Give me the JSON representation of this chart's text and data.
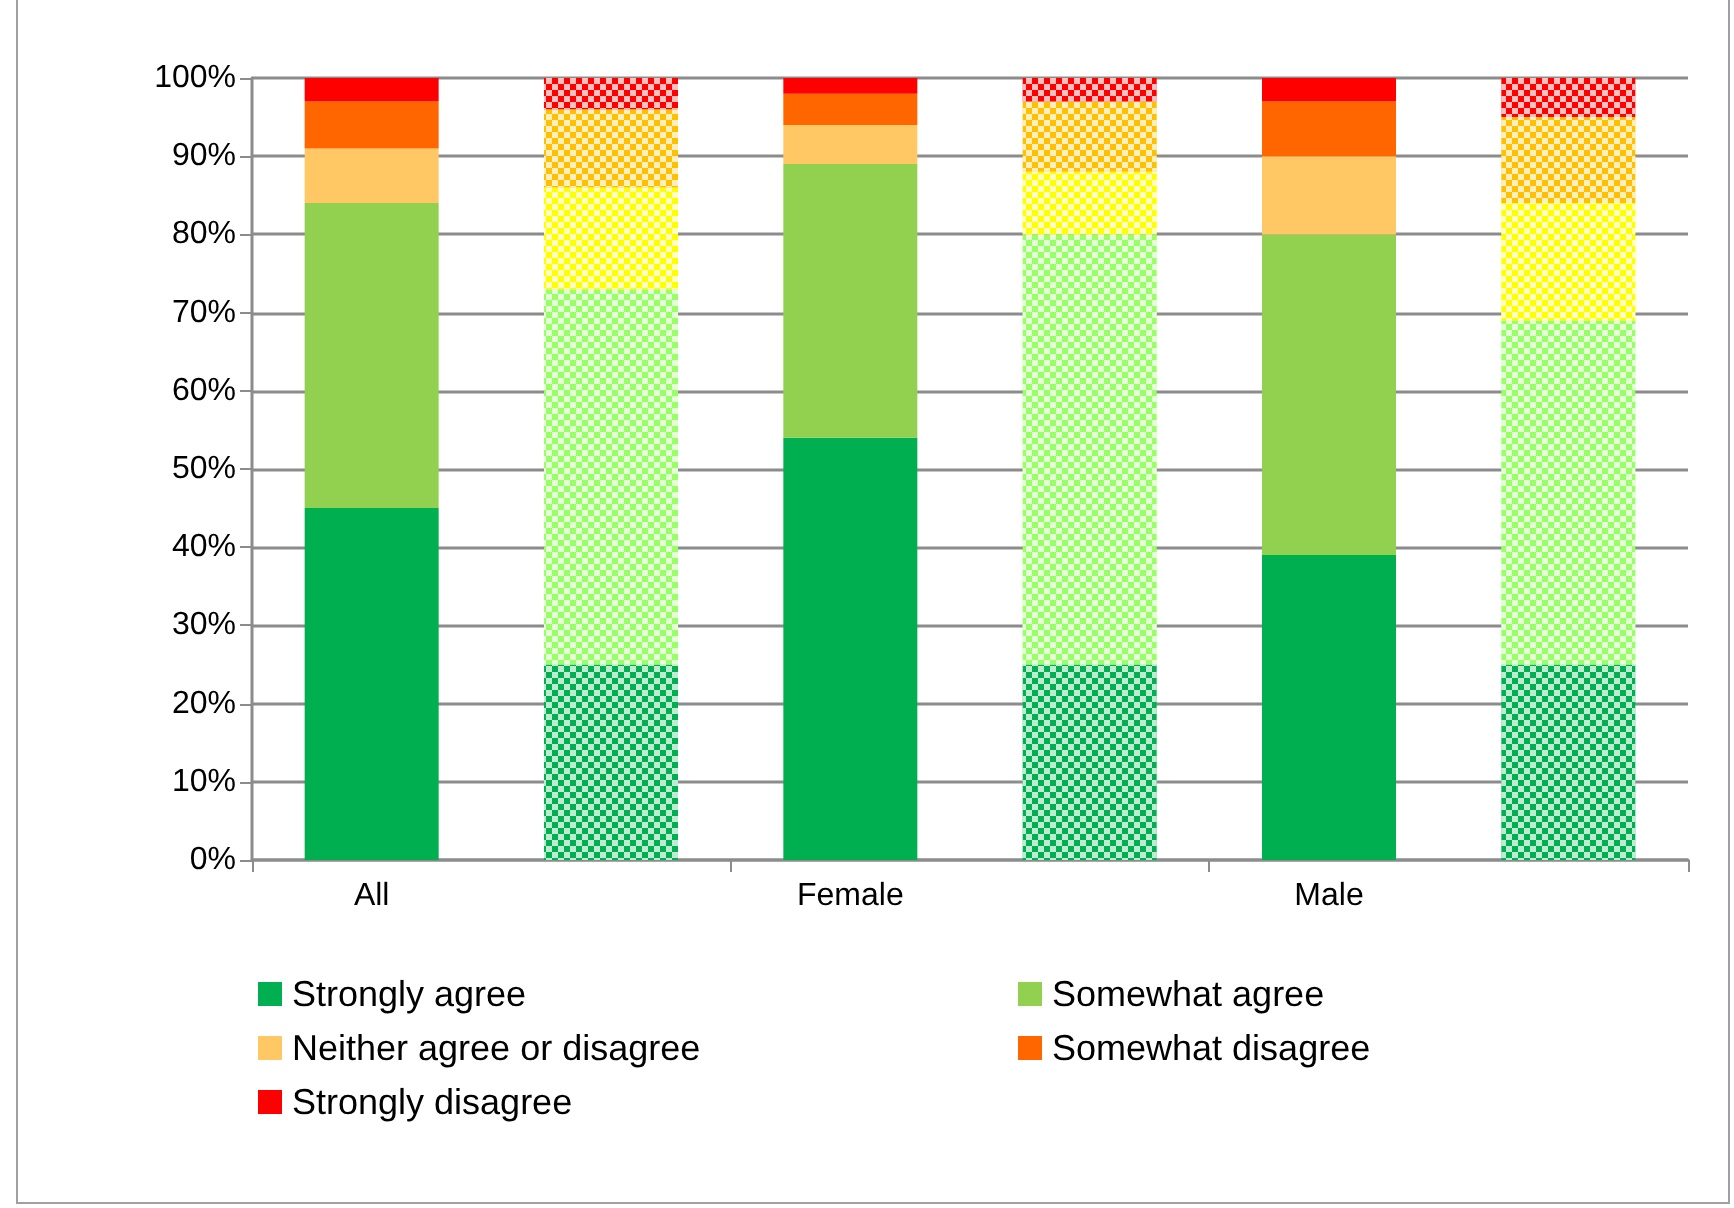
{
  "chart_data": {
    "type": "bar",
    "stacked": true,
    "categories": [
      "All",
      null,
      "Female",
      null,
      "Male",
      null
    ],
    "series": [
      {
        "name": "Strongly agree",
        "color": "#00b050",
        "values": [
          45,
          null,
          54,
          null,
          39,
          null
        ]
      },
      {
        "name": "Somewhat agree",
        "color": "#92d050",
        "values": [
          39,
          null,
          35,
          null,
          41,
          null
        ]
      },
      {
        "name": "Neither agree or disagree",
        "color": "#ffc864",
        "values": [
          7,
          null,
          5,
          null,
          10,
          null
        ]
      },
      {
        "name": "Somewhat disagree",
        "color": "#ff6600",
        "values": [
          6,
          null,
          4,
          null,
          7,
          null
        ]
      },
      {
        "name": "Strongly disagree",
        "color": "#ff0000",
        "values": [
          3,
          null,
          2,
          null,
          3,
          null
        ]
      },
      {
        "color": "#00b050",
        "values": [
          null,
          25,
          null,
          25,
          null,
          25
        ]
      },
      {
        "color": "#99ff66",
        "values": [
          null,
          48,
          null,
          55,
          null,
          44
        ]
      },
      {
        "color": "#ffff00",
        "values": [
          null,
          13,
          null,
          8,
          null,
          15
        ]
      },
      {
        "color": "#ffc000",
        "values": [
          null,
          10,
          null,
          9,
          null,
          11
        ]
      },
      {
        "color": "#ff0000",
        "values": [
          null,
          4,
          null,
          3,
          null,
          5
        ]
      }
    ],
    "ylim": [
      0,
      100
    ],
    "yticks": [
      {
        "value": 0,
        "label": "0%"
      },
      {
        "value": 10,
        "label": "10%"
      },
      {
        "value": 20,
        "label": "20%"
      },
      {
        "value": 30,
        "label": "30%"
      },
      {
        "value": 40,
        "label": "40%"
      },
      {
        "value": 50,
        "label": "50%"
      },
      {
        "value": 60,
        "label": "60%"
      },
      {
        "value": 70,
        "label": "70%"
      },
      {
        "value": 80,
        "label": "80%"
      },
      {
        "value": 90,
        "label": "90%"
      },
      {
        "value": 100,
        "label": "100%"
      }
    ],
    "grid": "y",
    "legend": "bottom"
  }
}
